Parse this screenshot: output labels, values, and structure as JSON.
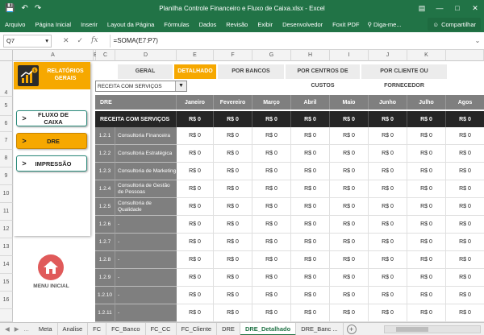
{
  "window": {
    "title": "Planilha Controle Financeiro e Fluxo de Caixa.xlsx - Excel"
  },
  "ribbon": {
    "tabs": [
      "Arquivo",
      "Página Inicial",
      "Inserir",
      "Layout da Página",
      "Fórmulas",
      "Dados",
      "Revisão",
      "Exibir",
      "Desenvolvedor",
      "Foxit PDF"
    ],
    "search_label": "Diga-me...",
    "share_label": "Compartilhar"
  },
  "formula_bar": {
    "cell_ref": "Q7",
    "formula": "=SOMA(E7:P7)"
  },
  "columns": [
    "A",
    "B",
    "C",
    "D",
    "E",
    "F",
    "G",
    "H",
    "I",
    "J",
    "K"
  ],
  "rows": [
    "4",
    "5",
    "6",
    "7",
    "8",
    "9",
    "10",
    "11",
    "12",
    "13",
    "14",
    "15",
    "16"
  ],
  "panel": {
    "header_label": "RELATÓRIOS GERAIS",
    "buttons": [
      {
        "arrow": ">",
        "label": "FLUXO DE CAIXA"
      },
      {
        "arrow": ">",
        "label": "DRE"
      },
      {
        "arrow": ">",
        "label": "IMPRESSÃO"
      }
    ],
    "home_label": "MENU INICIAL"
  },
  "report_tabs": [
    "GERAL",
    "DETALHADO",
    "POR BANCOS",
    "POR CENTROS DE CUSTOS",
    "POR CLIENTE OU FORNECEDOR"
  ],
  "dropdown": {
    "value": "RECEITA COM SERVIÇOS"
  },
  "table": {
    "header_label": "DRE",
    "months": [
      "Janeiro",
      "Fevereiro",
      "Março",
      "Abril",
      "Maio",
      "Junho",
      "Julho",
      "Agos"
    ],
    "section_label": "RECEITA COM SERVIÇOS",
    "currency_value": "R$ 0",
    "rows": [
      {
        "code": "1.2.1",
        "label": "Consultoria Financeira"
      },
      {
        "code": "1.2.2",
        "label": "Consultoria Estratégica"
      },
      {
        "code": "1.2.3",
        "label": "Consultoria de Marketing"
      },
      {
        "code": "1.2.4",
        "label": "Consultoria de Gestão de Pessoas"
      },
      {
        "code": "1.2.5",
        "label": "Consultoria de Qualidade"
      },
      {
        "code": "1.2.6",
        "label": "-"
      },
      {
        "code": "1.2.7",
        "label": "-"
      },
      {
        "code": "1.2.8",
        "label": "-"
      },
      {
        "code": "1.2.9",
        "label": "-"
      },
      {
        "code": "1.2.10",
        "label": "-"
      },
      {
        "code": "1.2.11",
        "label": "-"
      }
    ]
  },
  "sheet_tabs": [
    "Meta",
    "Analise",
    "FC",
    "FC_Banco",
    "FC_CC",
    "FC_Cliente",
    "DRE",
    "DRE_Detalhado",
    "DRE_Banc ..."
  ],
  "active_sheet": "DRE_Detalhado",
  "colors": {
    "excel_green": "#217346",
    "accent": "#f6a800",
    "header_gray": "#7f7f7f",
    "section_dark": "#262626",
    "home_red": "#e05a5a"
  }
}
